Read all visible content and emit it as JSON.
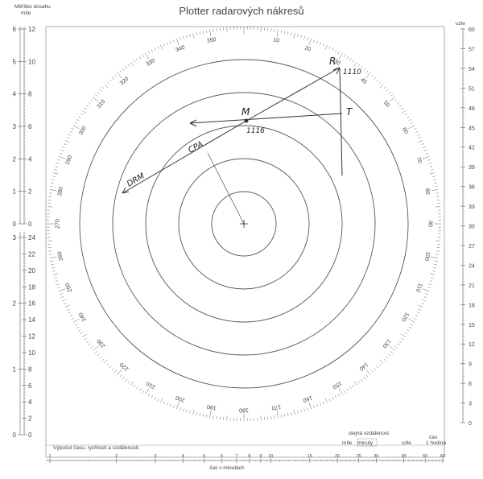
{
  "title": "Plotter radarových nákresů",
  "left_scale": {
    "header_line1": "Měřítko dosahu",
    "header_line2": "míle",
    "upper_outer": [
      "0",
      "1",
      "2",
      "3",
      "4",
      "5",
      "6"
    ],
    "upper_inner": [
      "0",
      "2",
      "4",
      "6",
      "8",
      "10",
      "12"
    ],
    "lower_outer": [
      "0",
      "1",
      "2",
      "3"
    ],
    "lower_inner": [
      "0",
      "2",
      "4",
      "6",
      "8",
      "10",
      "12",
      "14",
      "16",
      "18",
      "20",
      "22",
      "24"
    ]
  },
  "right_scale": {
    "header": "uzle",
    "labels": [
      "0",
      "3",
      "6",
      "9",
      "12",
      "15",
      "18",
      "21",
      "24",
      "27",
      "30",
      "33",
      "36",
      "39",
      "42",
      "45",
      "48",
      "51",
      "54",
      "57",
      "60"
    ]
  },
  "bearing_labels": [
    "350",
    "10",
    "20",
    "30",
    "40",
    "50",
    "60",
    "70",
    "80",
    "90",
    "100",
    "110",
    "120",
    "130",
    "140",
    "150",
    "160",
    "170",
    "180",
    "190",
    "200",
    "210",
    "220",
    "230",
    "240",
    "250",
    "260",
    "270",
    "280",
    "290",
    "300",
    "310",
    "320",
    "330",
    "340"
  ],
  "annotations": {
    "r_label": "R",
    "t_label": "T",
    "m_label": "M",
    "time_r": "1110",
    "time_m": "1116",
    "cpa_label": "CPA",
    "drm_label": "DRM"
  },
  "bottom": {
    "calc_label": "Výpočet času, rychlosti a vzdálenosti",
    "axis_label": "čas v minutách",
    "same_distance": "stejná vzdálenost",
    "miles": "míle",
    "minutes": "minuty",
    "knots": "uzle",
    "time_line1": "čas",
    "time_line2": "1 hodina",
    "ticks": [
      "1",
      "2",
      "3",
      "4",
      "5",
      "6",
      "7",
      "8",
      "9",
      "10",
      "15",
      "20",
      "25",
      "30",
      "40",
      "50",
      "60"
    ]
  }
}
